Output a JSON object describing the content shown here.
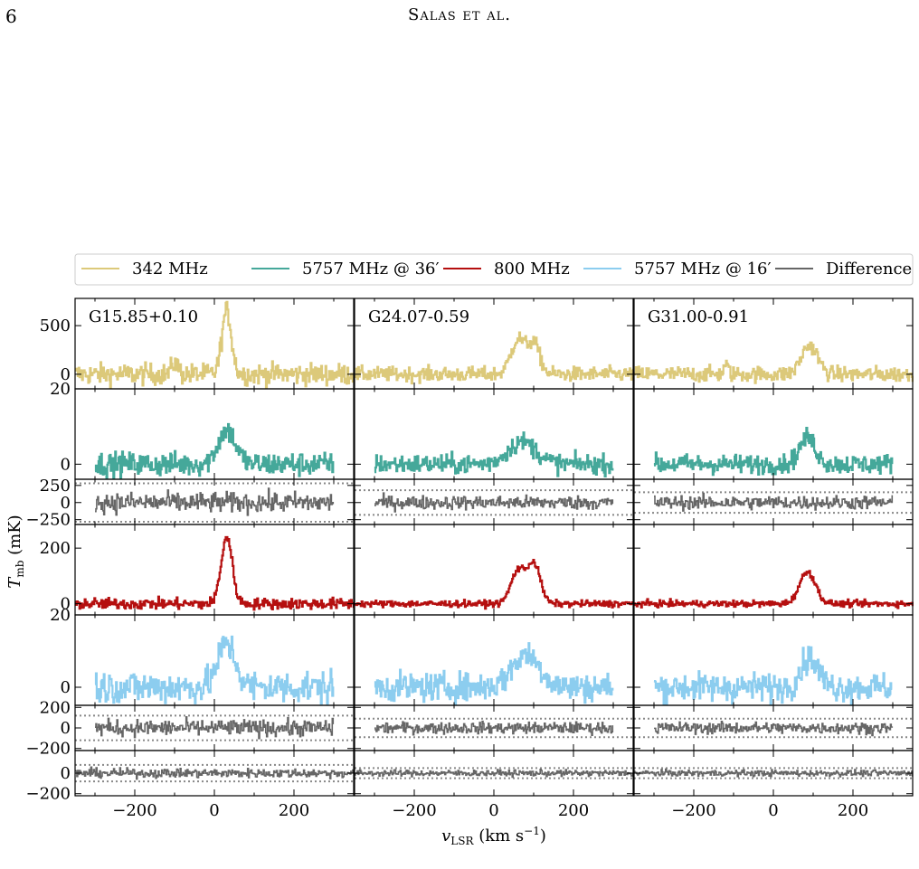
{
  "page": {
    "number": "6",
    "running_head": "Salas et al."
  },
  "chart_data": {
    "type": "line",
    "ylabel": "T",
    "ylabel_sub": "mb",
    "ylabel_unit": " (mK)",
    "xlabel": "v",
    "xlabel_sub": "LSR",
    "xlabel_unit": " (km s",
    "xlabel_unit_sup": "−1",
    "xlabel_unit_close": ")",
    "xlim": [
      -350,
      350
    ],
    "xticks": [
      -200,
      0,
      200
    ],
    "xticklabels": [
      "−200",
      "0",
      "200"
    ],
    "legend": {
      "placement": "top",
      "items": [
        {
          "label": "342 MHz",
          "color": "#dcc97a"
        },
        {
          "label": "5757 MHz @ 36′",
          "color": "#45a89a"
        },
        {
          "label": "800 MHz",
          "color": "#b50f0f"
        },
        {
          "label": "5757 MHz @ 16′",
          "color": "#8ccdef"
        },
        {
          "label": "Difference",
          "color": "#666666"
        }
      ]
    },
    "columns": [
      {
        "label": "G15.85+0.10"
      },
      {
        "label": "G24.07-0.59"
      },
      {
        "label": "G31.00-0.91"
      }
    ],
    "rows": [
      {
        "series": "342 MHz",
        "color": "#dcc97a",
        "ylim": [
          -150,
          780
        ],
        "yticks": [
          0,
          500
        ],
        "yticklabels": [
          "0",
          "500"
        ],
        "noise": [
          55,
          38,
          40
        ],
        "peaks": [
          [
            {
              "v": 30,
              "a": 650,
              "w": 12
            },
            {
              "v": -100,
              "a": 120,
              "w": 8
            }
          ],
          [
            {
              "v": 60,
              "a": 360,
              "w": 18
            },
            {
              "v": 100,
              "a": 300,
              "w": 15
            }
          ],
          [
            {
              "v": 90,
              "a": 300,
              "w": 20
            },
            {
              "v": -120,
              "a": 90,
              "w": 6
            }
          ]
        ],
        "vrange": [
          -350,
          350
        ]
      },
      {
        "series": "5757 MHz @ 36′",
        "color": "#45a89a",
        "ylim": [
          -4,
          20
        ],
        "yticks": [
          0,
          20
        ],
        "yticklabels": [
          "0",
          "20"
        ],
        "noise": [
          1.6,
          1.3,
          1.3
        ],
        "peaks": [
          [
            {
              "v": 30,
              "a": 9,
              "w": 22
            }
          ],
          [
            {
              "v": 70,
              "a": 6,
              "w": 35
            }
          ],
          [
            {
              "v": 85,
              "a": 7,
              "w": 20
            }
          ]
        ],
        "vrange": [
          -300,
          300
        ]
      },
      {
        "series": "Difference",
        "color": "#666666",
        "ylim": [
          -320,
          340
        ],
        "yticks": [
          -250,
          0,
          250
        ],
        "yticklabels": [
          "−250",
          "0",
          "250"
        ],
        "noise": [
          75,
          50,
          50
        ],
        "peaks": [
          [],
          [],
          []
        ],
        "vrange": [
          -300,
          300
        ],
        "dotted": [
          [
            -280,
            280
          ],
          [
            -180,
            180
          ],
          [
            -150,
            150
          ]
        ],
        "yticklabels_only_first": true
      },
      {
        "series": "800 MHz",
        "color": "#b50f0f",
        "ylim": [
          -40,
          285
        ],
        "yticks": [
          0,
          200
        ],
        "yticklabels": [
          "0",
          "200"
        ],
        "noise": [
          10,
          6,
          6
        ],
        "peaks": [
          [
            {
              "v": 30,
              "a": 240,
              "w": 14
            }
          ],
          [
            {
              "v": 60,
              "a": 120,
              "w": 18
            },
            {
              "v": 100,
              "a": 140,
              "w": 16
            }
          ],
          [
            {
              "v": 85,
              "a": 115,
              "w": 20
            }
          ]
        ],
        "vrange": [
          -350,
          350
        ]
      },
      {
        "series": "5757 MHz @ 16′",
        "color": "#8ccdef",
        "ylim": [
          -5,
          20
        ],
        "yticks": [
          0,
          20
        ],
        "yticklabels": [
          "0",
          "20"
        ],
        "noise": [
          2.3,
          2.0,
          2.0
        ],
        "peaks": [
          [
            {
              "v": 30,
              "a": 12,
              "w": 22
            }
          ],
          [
            {
              "v": 80,
              "a": 9,
              "w": 35
            }
          ],
          [
            {
              "v": 90,
              "a": 8,
              "w": 22
            }
          ]
        ],
        "vrange": [
          -300,
          300
        ]
      },
      {
        "series": "Difference",
        "color": "#666666",
        "ylim": [
          -220,
          220
        ],
        "yticks": [
          -200,
          0,
          200
        ],
        "yticklabels": [
          "−200",
          "0",
          "200"
        ],
        "noise": [
          40,
          28,
          28
        ],
        "peaks": [
          [],
          [],
          []
        ],
        "vrange": [
          -300,
          300
        ],
        "dotted": [
          [
            -120,
            120
          ],
          [
            -90,
            90
          ],
          [
            -90,
            90
          ]
        ]
      },
      {
        "series": "Difference",
        "color": "#666666",
        "ylim": [
          -220,
          220
        ],
        "yticks": [
          -200,
          0
        ],
        "yticklabels": [
          "−200",
          "0"
        ],
        "noise": [
          22,
          15,
          15
        ],
        "peaks": [
          [],
          [],
          []
        ],
        "vrange": [
          -350,
          350
        ],
        "dotted": [
          [
            -80,
            80
          ],
          [
            -50,
            50
          ],
          [
            -50,
            50
          ]
        ]
      }
    ]
  }
}
